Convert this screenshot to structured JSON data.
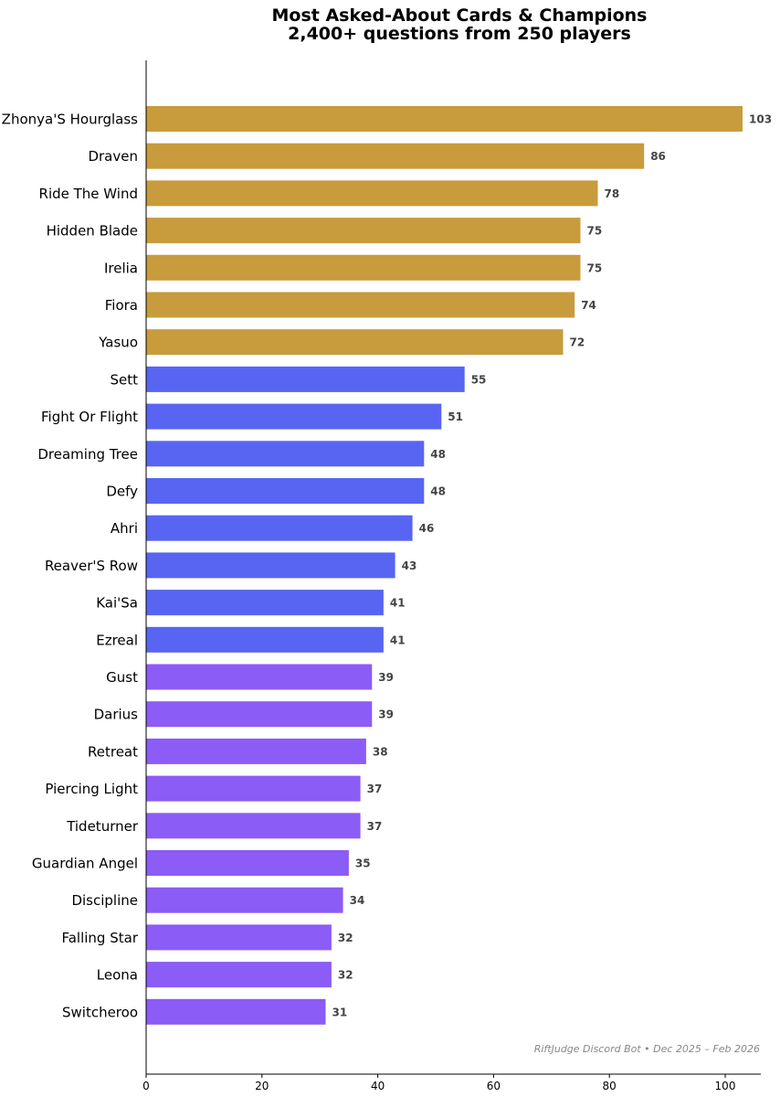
{
  "chart_data": {
    "type": "bar",
    "orientation": "horizontal",
    "title": "Most Asked-About Cards & Champions",
    "subtitle": "2,400+ questions from 250 players",
    "xlabel": "",
    "ylabel": "",
    "xlim": [
      0,
      103
    ],
    "x_ticks": [
      "0",
      "20",
      "40",
      "60",
      "80",
      "100"
    ],
    "grid": false,
    "categories": [
      "Zhonya'S Hourglass",
      "Draven",
      "Ride The Wind",
      "Hidden Blade",
      "Irelia",
      "Fiora",
      "Yasuo",
      "Sett",
      "Fight Or Flight",
      "Dreaming Tree",
      "Defy",
      "Ahri",
      "Reaver'S Row",
      "Kai'Sa",
      "Ezreal",
      "Gust",
      "Darius",
      "Retreat",
      "Piercing Light",
      "Tideturner",
      "Guardian Angel",
      "Discipline",
      "Falling Star",
      "Leona",
      "Switcheroo"
    ],
    "values": [
      103,
      86,
      78,
      75,
      75,
      74,
      72,
      55,
      51,
      48,
      48,
      46,
      43,
      41,
      41,
      39,
      39,
      38,
      37,
      37,
      35,
      34,
      32,
      32,
      31
    ],
    "value_labels": [
      "103",
      "86",
      "78",
      "75",
      "75",
      "74",
      "72",
      "55",
      "51",
      "48",
      "48",
      "46",
      "43",
      "41",
      "41",
      "39",
      "39",
      "38",
      "37",
      "37",
      "35",
      "34",
      "32",
      "32",
      "31"
    ],
    "tier_colors": [
      "#c89b3c",
      "#c89b3c",
      "#c89b3c",
      "#c89b3c",
      "#c89b3c",
      "#c89b3c",
      "#c89b3c",
      "#5865f2",
      "#5865f2",
      "#5865f2",
      "#5865f2",
      "#5865f2",
      "#5865f2",
      "#5865f2",
      "#5865f2",
      "#8b5cf6",
      "#8b5cf6",
      "#8b5cf6",
      "#8b5cf6",
      "#8b5cf6",
      "#8b5cf6",
      "#8b5cf6",
      "#8b5cf6",
      "#8b5cf6",
      "#8b5cf6"
    ],
    "footnote": "RiftJudge Discord Bot  •  Dec 2025 – Feb 2026"
  }
}
